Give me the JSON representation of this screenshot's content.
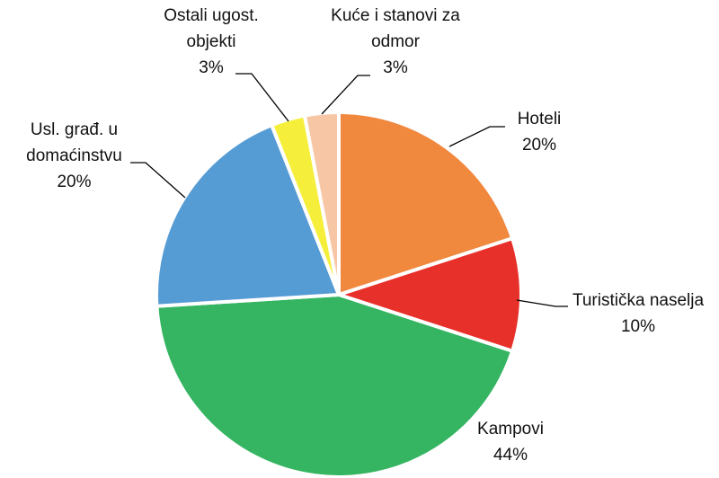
{
  "chart_data": {
    "type": "pie",
    "categories": [
      "Hoteli",
      "Turistička naselja",
      "Kampovi",
      "Usl. građ. u domaćinstvu",
      "Ostali ugost. objekti",
      "Kuće i stanovi za odmor"
    ],
    "values": [
      20,
      10,
      44,
      20,
      3,
      3
    ],
    "value_labels": [
      "20%",
      "10%",
      "44%",
      "20%",
      "3%",
      "3%"
    ],
    "colors": [
      "#f0883e",
      "#e8302a",
      "#35b562",
      "#559bd4",
      "#f5ef3c",
      "#f7c6a4"
    ]
  }
}
